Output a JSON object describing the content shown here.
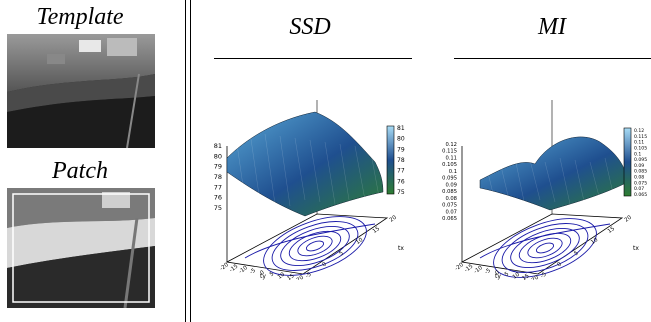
{
  "left_panel": {
    "template_title": "Template",
    "patch_title": "Patch"
  },
  "plots": [
    {
      "title": "SSD",
      "z_ticks": [
        "81",
        "80",
        "79",
        "78",
        "77",
        "76",
        "75"
      ],
      "colorbar_ticks": [
        "81",
        "80",
        "79",
        "78",
        "77",
        "76",
        "75"
      ],
      "ty_ticks": [
        "-20",
        "-15",
        "-10",
        "-5",
        "0",
        "5",
        "10",
        "15",
        "20"
      ],
      "tx_ticks": [
        "20",
        "15",
        "10",
        "5",
        "0",
        "-5"
      ],
      "ty_label": "ty",
      "tx_label": "tx"
    },
    {
      "title": "MI",
      "z_ticks": [
        "0.12",
        "0.115",
        "0.11",
        "0.105",
        "0.1",
        "0.095",
        "0.09",
        "0.085",
        "0.08",
        "0.075",
        "0.07",
        "0.065"
      ],
      "colorbar_ticks": [
        "0.12",
        "0.115",
        "0.11",
        "0.105",
        "0.1",
        "0.095",
        "0.09",
        "0.085",
        "0.08",
        "0.075",
        "0.07",
        "0.065"
      ],
      "ty_ticks": [
        "-20",
        "-15",
        "-10",
        "-5",
        "0",
        "5",
        "10",
        "15",
        "20"
      ],
      "tx_ticks": [
        "20",
        "15",
        "10",
        "5",
        "0",
        "-5"
      ],
      "ty_label": "ty",
      "tx_label": "tx"
    }
  ],
  "colors": {
    "surface_top": "#5aa9d8",
    "surface_mid": "#1f4f8f",
    "surface_low": "#2e7d32",
    "contour": "#1a1aa8"
  }
}
